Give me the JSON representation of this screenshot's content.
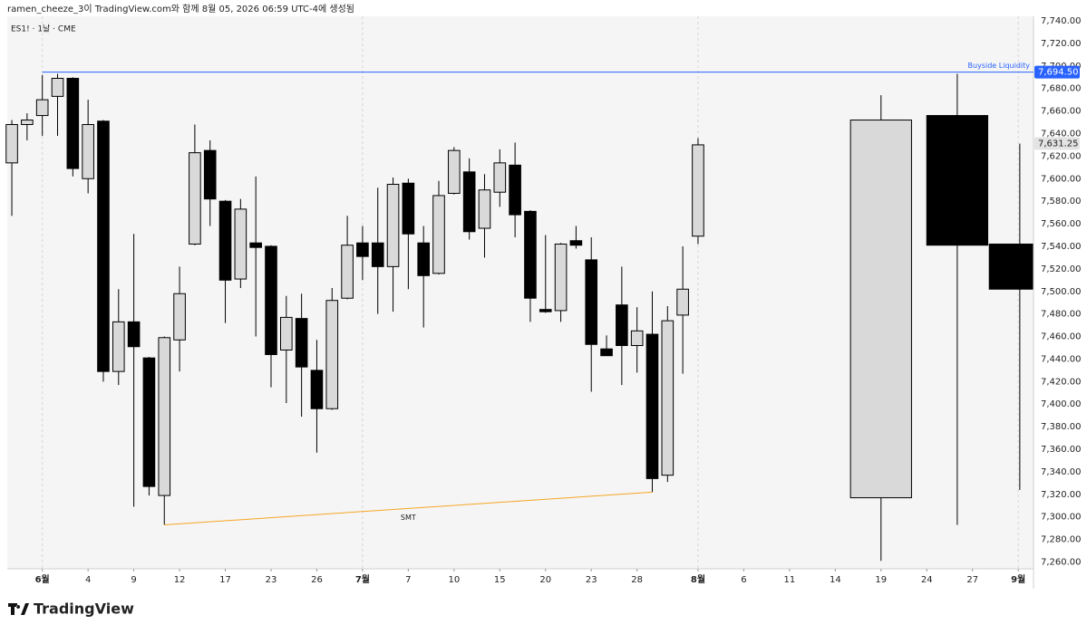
{
  "header": "ramen_cheeze_3이 TradingView.com와 함께 8월 05, 2026 06:59 UTC-4에 생성됨",
  "brand": "TradingView",
  "chart_data": {
    "type": "candlestick",
    "symbol": "ES1! · 1날 · CME",
    "up_color": "#d9d9d9",
    "down_color": "#000000",
    "grid": false,
    "xlim": [
      -0.3,
      67
    ],
    "ylim": [
      7254,
      7744
    ],
    "yticks": [
      {
        "value": 7260,
        "label": "7,260.00"
      },
      {
        "value": 7280,
        "label": "7,280.00"
      },
      {
        "value": 7300,
        "label": "7,300.00"
      },
      {
        "value": 7320,
        "label": "7,320.00"
      },
      {
        "value": 7340,
        "label": "7,340.00"
      },
      {
        "value": 7360,
        "label": "7,360.00"
      },
      {
        "value": 7380,
        "label": "7,380.00"
      },
      {
        "value": 7400,
        "label": "7,400.00"
      },
      {
        "value": 7420,
        "label": "7,420.00"
      },
      {
        "value": 7440,
        "label": "7,440.00"
      },
      {
        "value": 7460,
        "label": "7,460.00"
      },
      {
        "value": 7480,
        "label": "7,480.00"
      },
      {
        "value": 7500,
        "label": "7,500.00"
      },
      {
        "value": 7520,
        "label": "7,520.00"
      },
      {
        "value": 7540,
        "label": "7,540.00"
      },
      {
        "value": 7560,
        "label": "7,560.00"
      },
      {
        "value": 7580,
        "label": "7,580.00"
      },
      {
        "value": 7600,
        "label": "7,600.00"
      },
      {
        "value": 7620,
        "label": "7,620.00"
      },
      {
        "value": 7640,
        "label": "7,640.00"
      },
      {
        "value": 7660,
        "label": "7,660.00"
      },
      {
        "value": 7680,
        "label": "7,680.00"
      },
      {
        "value": 7700,
        "label": "7,700.00"
      },
      {
        "value": 7720,
        "label": "7,720.00"
      },
      {
        "value": 7740,
        "label": "7,740.00"
      }
    ],
    "xticks": [
      {
        "value": 2,
        "label": "6월",
        "month": true
      },
      {
        "value": 5,
        "label": "4"
      },
      {
        "value": 8,
        "label": "9"
      },
      {
        "value": 11,
        "label": "12"
      },
      {
        "value": 14,
        "label": "17"
      },
      {
        "value": 17,
        "label": "23"
      },
      {
        "value": 20,
        "label": "26"
      },
      {
        "value": 23,
        "label": "7월",
        "month": true
      },
      {
        "value": 26,
        "label": "7"
      },
      {
        "value": 29,
        "label": "10"
      },
      {
        "value": 32,
        "label": "15"
      },
      {
        "value": 35,
        "label": "20"
      },
      {
        "value": 38,
        "label": "23"
      },
      {
        "value": 41,
        "label": "28"
      },
      {
        "value": 45,
        "label": "8월",
        "month": true
      },
      {
        "value": 48,
        "label": "6"
      },
      {
        "value": 51,
        "label": "11"
      },
      {
        "value": 54,
        "label": "14"
      },
      {
        "value": 57,
        "label": "19"
      },
      {
        "value": 60,
        "label": "24"
      },
      {
        "value": 63,
        "label": "27"
      },
      {
        "value": 66,
        "label": "9월",
        "month": true
      }
    ],
    "candles": [
      {
        "x": 0,
        "open": 7614,
        "high": 7652,
        "low": 7567,
        "close": 7648
      },
      {
        "x": 1,
        "open": 7648,
        "high": 7658,
        "low": 7634,
        "close": 7652
      },
      {
        "x": 2,
        "open": 7656,
        "high": 7692,
        "low": 7638,
        "close": 7670
      },
      {
        "x": 3,
        "open": 7673,
        "high": 7693,
        "low": 7638,
        "close": 7689
      },
      {
        "x": 4,
        "open": 7689,
        "high": 7690,
        "low": 7602,
        "close": 7609
      },
      {
        "x": 5,
        "open": 7600,
        "high": 7670,
        "low": 7587,
        "close": 7648
      },
      {
        "x": 6,
        "open": 7651,
        "high": 7652,
        "low": 7420,
        "close": 7429
      },
      {
        "x": 7,
        "open": 7429,
        "high": 7502,
        "low": 7417,
        "close": 7473
      },
      {
        "x": 8,
        "open": 7473,
        "high": 7551,
        "low": 7309,
        "close": 7451
      },
      {
        "x": 9,
        "open": 7441,
        "high": 7442,
        "low": 7319,
        "close": 7327
      },
      {
        "x": 10,
        "open": 7319,
        "high": 7460,
        "low": 7293,
        "close": 7459
      },
      {
        "x": 11,
        "open": 7457,
        "high": 7522,
        "low": 7429,
        "close": 7498
      },
      {
        "x": 12,
        "open": 7542,
        "high": 7648,
        "low": 7541,
        "close": 7623
      },
      {
        "x": 13,
        "open": 7625,
        "high": 7634,
        "low": 7558,
        "close": 7582
      },
      {
        "x": 14,
        "open": 7580,
        "high": 7581,
        "low": 7472,
        "close": 7510
      },
      {
        "x": 15,
        "open": 7511,
        "high": 7582,
        "low": 7503,
        "close": 7573
      },
      {
        "x": 16,
        "open": 7543,
        "high": 7602,
        "low": 7460,
        "close": 7539
      },
      {
        "x": 17,
        "open": 7540,
        "high": 7541,
        "low": 7415,
        "close": 7444
      },
      {
        "x": 18,
        "open": 7448,
        "high": 7496,
        "low": 7401,
        "close": 7477
      },
      {
        "x": 19,
        "open": 7476,
        "high": 7498,
        "low": 7389,
        "close": 7433
      },
      {
        "x": 20,
        "open": 7430,
        "high": 7457,
        "low": 7357,
        "close": 7396
      },
      {
        "x": 21,
        "open": 7396,
        "high": 7503,
        "low": 7395,
        "close": 7492
      },
      {
        "x": 22,
        "open": 7494,
        "high": 7567,
        "low": 7493,
        "close": 7541
      },
      {
        "x": 23,
        "open": 7543,
        "high": 7558,
        "low": 7510,
        "close": 7531
      },
      {
        "x": 24,
        "open": 7543,
        "high": 7592,
        "low": 7480,
        "close": 7522
      },
      {
        "x": 25,
        "open": 7522,
        "high": 7601,
        "low": 7482,
        "close": 7595
      },
      {
        "x": 26,
        "open": 7596,
        "high": 7600,
        "low": 7502,
        "close": 7551
      },
      {
        "x": 27,
        "open": 7543,
        "high": 7558,
        "low": 7468,
        "close": 7514
      },
      {
        "x": 28,
        "open": 7516,
        "high": 7598,
        "low": 7515,
        "close": 7585
      },
      {
        "x": 29,
        "open": 7587,
        "high": 7628,
        "low": 7586,
        "close": 7625
      },
      {
        "x": 30,
        "open": 7606,
        "high": 7618,
        "low": 7546,
        "close": 7553
      },
      {
        "x": 31,
        "open": 7556,
        "high": 7604,
        "low": 7530,
        "close": 7590
      },
      {
        "x": 32,
        "open": 7588,
        "high": 7626,
        "low": 7575,
        "close": 7614
      },
      {
        "x": 33,
        "open": 7612,
        "high": 7632,
        "low": 7548,
        "close": 7568
      },
      {
        "x": 34,
        "open": 7571,
        "high": 7572,
        "low": 7473,
        "close": 7494
      },
      {
        "x": 35,
        "open": 7484,
        "high": 7550,
        "low": 7481,
        "close": 7482
      },
      {
        "x": 36,
        "open": 7483,
        "high": 7543,
        "low": 7473,
        "close": 7542
      },
      {
        "x": 37,
        "open": 7545,
        "high": 7558,
        "low": 7538,
        "close": 7541
      },
      {
        "x": 38,
        "open": 7528,
        "high": 7548,
        "low": 7411,
        "close": 7453
      },
      {
        "x": 39,
        "open": 7449,
        "high": 7461,
        "low": 7443,
        "close": 7443
      },
      {
        "x": 40,
        "open": 7488,
        "high": 7522,
        "low": 7417,
        "close": 7452
      },
      {
        "x": 41,
        "open": 7452,
        "high": 7486,
        "low": 7428,
        "close": 7465
      },
      {
        "x": 42,
        "open": 7462,
        "high": 7500,
        "low": 7322,
        "close": 7334
      },
      {
        "x": 43,
        "open": 7337,
        "high": 7487,
        "low": 7331,
        "close": 7474
      },
      {
        "x": 44,
        "open": 7479,
        "high": 7540,
        "low": 7427,
        "close": 7502
      },
      {
        "x": 45,
        "open": 7549,
        "high": 7636,
        "low": 7542,
        "close": 7630
      }
    ],
    "htf_candles": [
      {
        "x": 57,
        "open": 7317,
        "high": 7674,
        "low": 7261,
        "close": 7652
      },
      {
        "x": 62,
        "open": 7656,
        "high": 7693,
        "low": 7293,
        "close": 7541
      },
      {
        "x": 66.1,
        "open": 7542,
        "high": 7631,
        "low": 7324,
        "close": 7502
      }
    ],
    "level": {
      "value": 7694.5,
      "label": "7,694.50",
      "text": "Buyside Liquidity",
      "color": "#2962ff"
    },
    "last_price": {
      "value": 7631.25,
      "label": "7,631.25"
    },
    "smt": {
      "text": "SMT",
      "x": [
        10,
        42
      ],
      "y": [
        7293,
        7322
      ],
      "color": "#f5a623"
    }
  }
}
